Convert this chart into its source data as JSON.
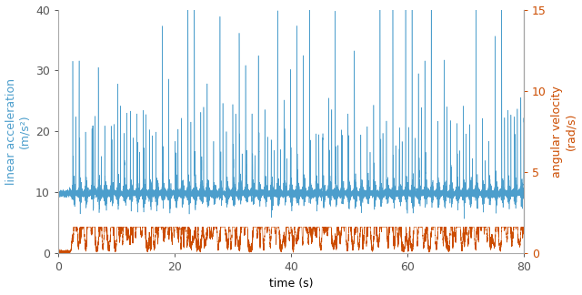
{
  "xlim": [
    0,
    80
  ],
  "ylim_left": [
    0,
    40
  ],
  "ylim_right": [
    0,
    15
  ],
  "xticks": [
    0,
    20,
    40,
    60,
    80
  ],
  "yticks_left": [
    0,
    10,
    20,
    30,
    40
  ],
  "yticks_right": [
    0,
    5,
    10,
    15
  ],
  "xlabel": "time (s)",
  "ylabel_left": "linear acceleration\n(m/s²)",
  "ylabel_right": "angular velocity\n(rad/s)",
  "color_blue": "#4C9ECC",
  "color_orange": "#CC4C00",
  "figsize": [
    6.4,
    3.24
  ],
  "dpi": 100,
  "baseline_accel": 9.81,
  "duration": 80,
  "num_points": 16000,
  "step_period": 1.1,
  "step_start": 2.5,
  "bg_color": "#ffffff"
}
